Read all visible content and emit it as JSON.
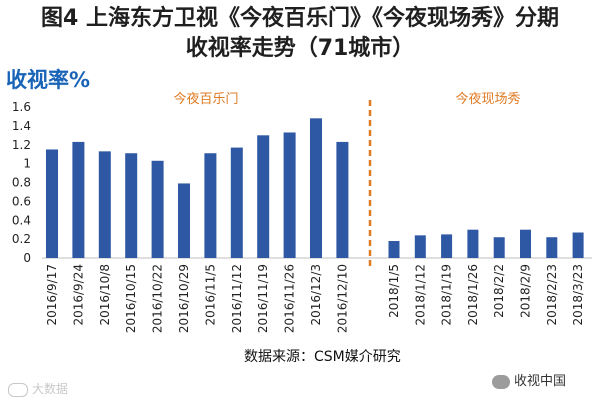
{
  "title_line1": "图4 上海东方卫视《今夜百乐门》《今夜现场秀》分期",
  "title_line2": "收视率走势（71城市）",
  "source": "数据来源：CSM媒介研究",
  "watermark_left": "大数据",
  "watermark_right": "收视中国",
  "colors": {
    "bar": "#2e57a4",
    "divider": "#e07b24",
    "group_label": "#e07b24",
    "ylabel": "#1a64b8"
  },
  "chart_data": {
    "type": "bar",
    "ylabel": "收视率%",
    "ylim": [
      0,
      1.6
    ],
    "yticks": [
      "0",
      "0.2",
      "0.4",
      "0.6",
      "0.8",
      "1",
      "1.2",
      "1.4",
      "1.6"
    ],
    "grid": false,
    "groups": [
      {
        "label": "今夜百乐门",
        "categories": [
          "2016/9/17",
          "2016/9/24",
          "2016/10/8",
          "2016/10/15",
          "2016/10/22",
          "2016/10/29",
          "2016/11/5",
          "2016/11/12",
          "2016/11/19",
          "2016/11/26",
          "2016/12/3",
          "2016/12/10"
        ],
        "values": [
          1.15,
          1.23,
          1.13,
          1.11,
          1.03,
          0.79,
          1.11,
          1.17,
          1.3,
          1.33,
          1.48,
          1.23
        ]
      },
      {
        "label": "今夜现场秀",
        "categories": [
          "2018/1/5",
          "2018/1/12",
          "2018/1/19",
          "2018/1/26",
          "2018/2/2",
          "2018/2/9",
          "2018/2/23",
          "2018/3/23"
        ],
        "values": [
          0.18,
          0.24,
          0.25,
          0.3,
          0.22,
          0.3,
          0.22,
          0.27
        ]
      }
    ]
  }
}
